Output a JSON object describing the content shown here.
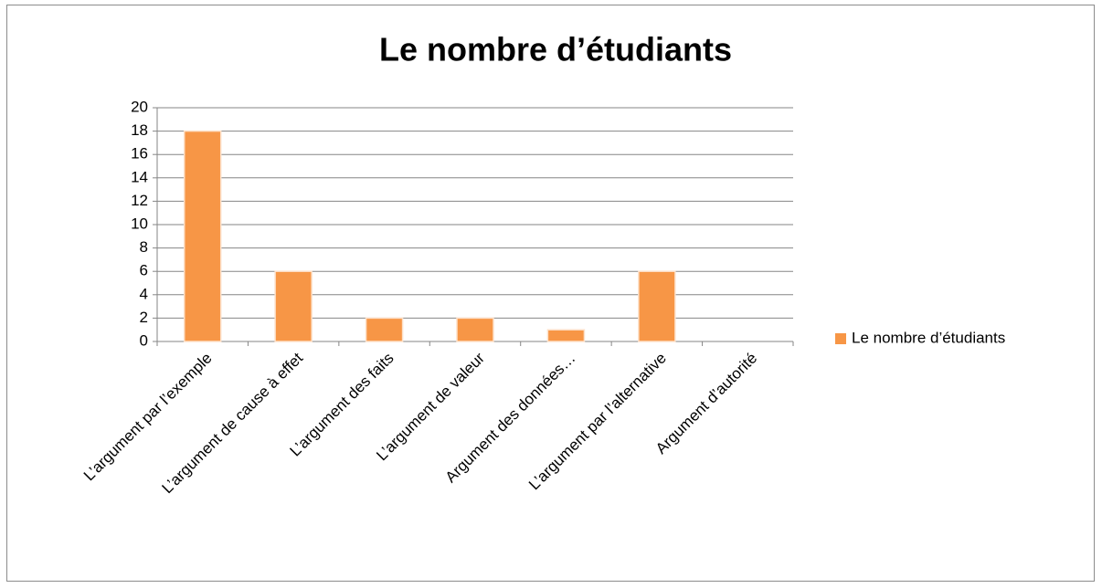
{
  "chart_data": {
    "type": "bar",
    "title": "Le nombre d’étudiants",
    "categories": [
      "L’argument par l’exemple",
      "L’argument de cause à effet",
      "L’argument des faits",
      "L’argument de valeur",
      "Argument des données…",
      "L’argument par l’alternative",
      "Argument d’autorité"
    ],
    "series": [
      {
        "name": "Le nombre d’étudiants",
        "color": "#f79646",
        "values": [
          18,
          6,
          2,
          2,
          1,
          6,
          0
        ]
      }
    ],
    "ylim": [
      0,
      20
    ],
    "yticks": [
      0,
      2,
      4,
      6,
      8,
      10,
      12,
      14,
      16,
      18,
      20
    ],
    "grid": true,
    "legend": "right"
  }
}
